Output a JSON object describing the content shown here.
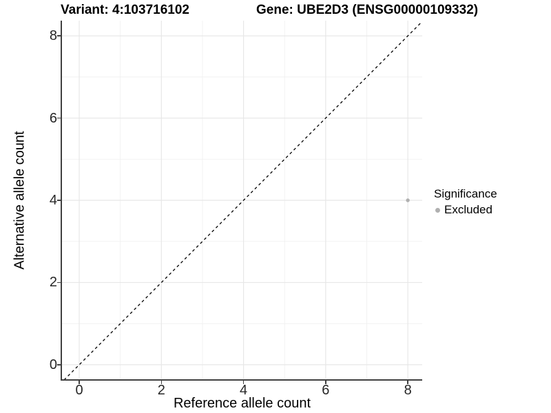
{
  "title": {
    "variant": "Variant: 4:103716102",
    "gene": "Gene: UBE2D3 (ENSG00000109332)"
  },
  "axes": {
    "x_label": "Reference allele count",
    "y_label": "Alternative allele count"
  },
  "legend": {
    "title": "Significance",
    "items": [
      {
        "label": "Excluded",
        "color": "#b0b0b0"
      }
    ]
  },
  "colors": {
    "background": "#ffffff",
    "gridline_major": "#e7e7e7",
    "gridline_minor": "#efefef",
    "axis_line": "#404040",
    "tick_label": "#262626",
    "dashed_line": "#000000",
    "point": "#b0b0b0"
  },
  "chart_data": {
    "type": "scatter",
    "title": "Variant: 4:103716102 — Gene: UBE2D3 (ENSG00000109332)",
    "xlabel": "Reference allele count",
    "ylabel": "Alternative allele count",
    "xlim": [
      -0.42,
      8.35
    ],
    "ylim": [
      -0.37,
      8.37
    ],
    "x_ticks": [
      0,
      2,
      4,
      6,
      8
    ],
    "y_ticks": [
      0,
      2,
      4,
      6,
      8
    ],
    "x_minor_gridlines": [
      1,
      3,
      5,
      7
    ],
    "y_minor_gridlines": [
      1,
      3,
      5,
      7
    ],
    "grid": true,
    "legend_position": "right",
    "reference_line": {
      "type": "identity",
      "equation": "y = x",
      "style": "dashed",
      "color": "#000000"
    },
    "series": [
      {
        "name": "Excluded",
        "color": "#b0b0b0",
        "points": [
          {
            "x": 8,
            "y": 4
          }
        ]
      }
    ]
  }
}
